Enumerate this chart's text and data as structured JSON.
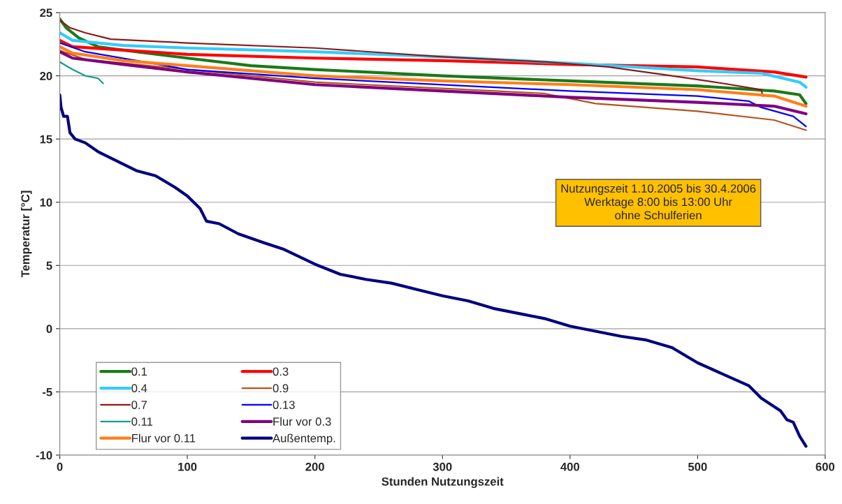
{
  "chart_data": {
    "type": "line",
    "xlabel": "Stunden Nutzungszeit",
    "ylabel": "Temperatur [°C]",
    "xlim": [
      0,
      600
    ],
    "xticks": [
      0,
      100,
      200,
      300,
      400,
      500,
      600
    ],
    "ylim": [
      -10,
      25
    ],
    "yticks": [
      -10,
      -5,
      0,
      5,
      10,
      15,
      20,
      25
    ],
    "grid": "y",
    "legend": "bottom left",
    "line_style": "solid",
    "annotations": [
      "Nutzungszeit 1.10.2005 bis 30.4.2006\nWerktage 8:00 bis 13:00 Uhr\nohne Schulferien"
    ],
    "series": [
      {
        "name": "0.1",
        "color": "#1a7a1a",
        "x": [
          0,
          5,
          15,
          30,
          60,
          100,
          150,
          200,
          300,
          400,
          500,
          560,
          580,
          585
        ],
        "values": [
          24.5,
          23.8,
          23.0,
          22.3,
          21.9,
          21.4,
          20.8,
          20.5,
          20.0,
          19.6,
          19.2,
          18.8,
          18.5,
          17.8
        ]
      },
      {
        "name": "0.3",
        "color": "#ff0000",
        "x": [
          0,
          10,
          40,
          100,
          200,
          300,
          400,
          500,
          560,
          585
        ],
        "values": [
          22.8,
          22.3,
          22.1,
          21.7,
          21.4,
          21.2,
          20.9,
          20.7,
          20.3,
          19.9
        ]
      },
      {
        "name": "0.4",
        "color": "#33ccff",
        "x": [
          0,
          10,
          50,
          100,
          200,
          300,
          400,
          500,
          550,
          580,
          585
        ],
        "values": [
          23.4,
          22.8,
          22.4,
          22.2,
          21.9,
          21.5,
          21.0,
          20.4,
          20.2,
          19.5,
          19.1
        ]
      },
      {
        "name": "0.9",
        "color": "#b5541c",
        "x": [
          0,
          20,
          100,
          200,
          300,
          380,
          420,
          500,
          560,
          585
        ],
        "values": [
          22.0,
          21.3,
          20.5,
          19.5,
          19.0,
          18.6,
          17.8,
          17.2,
          16.5,
          15.7
        ]
      },
      {
        "name": "0.7",
        "color": "#8b1a1a",
        "x": [
          0,
          8,
          20,
          40,
          100,
          200,
          300,
          380,
          430,
          480,
          520,
          550,
          551
        ],
        "values": [
          24.4,
          23.8,
          23.4,
          22.9,
          22.6,
          22.2,
          21.5,
          21.1,
          20.7,
          20.0,
          19.4,
          18.9,
          18.4
        ]
      },
      {
        "name": "0.13",
        "color": "#0000ff",
        "x": [
          0,
          20,
          100,
          200,
          300,
          400,
          500,
          540,
          550,
          575,
          585
        ],
        "values": [
          22.6,
          21.9,
          20.5,
          19.8,
          19.3,
          18.8,
          18.4,
          18.0,
          17.5,
          16.8,
          16.0
        ]
      },
      {
        "name": "0.11",
        "color": "#1a9a8a",
        "x": [
          0,
          10,
          20,
          30,
          34
        ],
        "values": [
          21.1,
          20.5,
          20.0,
          19.8,
          19.4
        ]
      },
      {
        "name": "Flur vor 0.3",
        "color": "#800080",
        "x": [
          0,
          10,
          50,
          100,
          200,
          300,
          400,
          500,
          560,
          585
        ],
        "values": [
          21.9,
          21.4,
          20.9,
          20.3,
          19.3,
          18.8,
          18.3,
          17.9,
          17.6,
          17.0
        ]
      },
      {
        "name": "Flur vor 0.11",
        "color": "#ff7f1a",
        "x": [
          0,
          10,
          50,
          100,
          200,
          300,
          400,
          500,
          560,
          585
        ],
        "values": [
          22.3,
          21.8,
          21.2,
          20.8,
          20.0,
          19.6,
          19.3,
          18.9,
          18.4,
          17.6
        ]
      },
      {
        "name": "Außentemp.",
        "color": "#000080",
        "x": [
          0,
          1,
          3,
          6,
          8,
          12,
          20,
          30,
          40,
          50,
          60,
          75,
          90,
          100,
          110,
          115,
          125,
          140,
          160,
          175,
          200,
          220,
          240,
          260,
          280,
          300,
          320,
          340,
          360,
          380,
          400,
          420,
          440,
          460,
          480,
          500,
          520,
          540,
          550,
          565,
          570,
          575,
          580,
          585
        ],
        "values": [
          18.5,
          17.5,
          16.8,
          16.8,
          15.5,
          15.0,
          14.7,
          14.0,
          13.5,
          13.0,
          12.5,
          12.1,
          11.2,
          10.5,
          9.5,
          8.5,
          8.3,
          7.5,
          6.8,
          6.3,
          5.1,
          4.3,
          3.9,
          3.6,
          3.1,
          2.6,
          2.2,
          1.6,
          1.2,
          0.8,
          0.2,
          -0.2,
          -0.6,
          -0.9,
          -1.5,
          -2.7,
          -3.6,
          -4.5,
          -5.5,
          -6.5,
          -7.2,
          -7.4,
          -8.5,
          -9.3
        ]
      }
    ]
  }
}
